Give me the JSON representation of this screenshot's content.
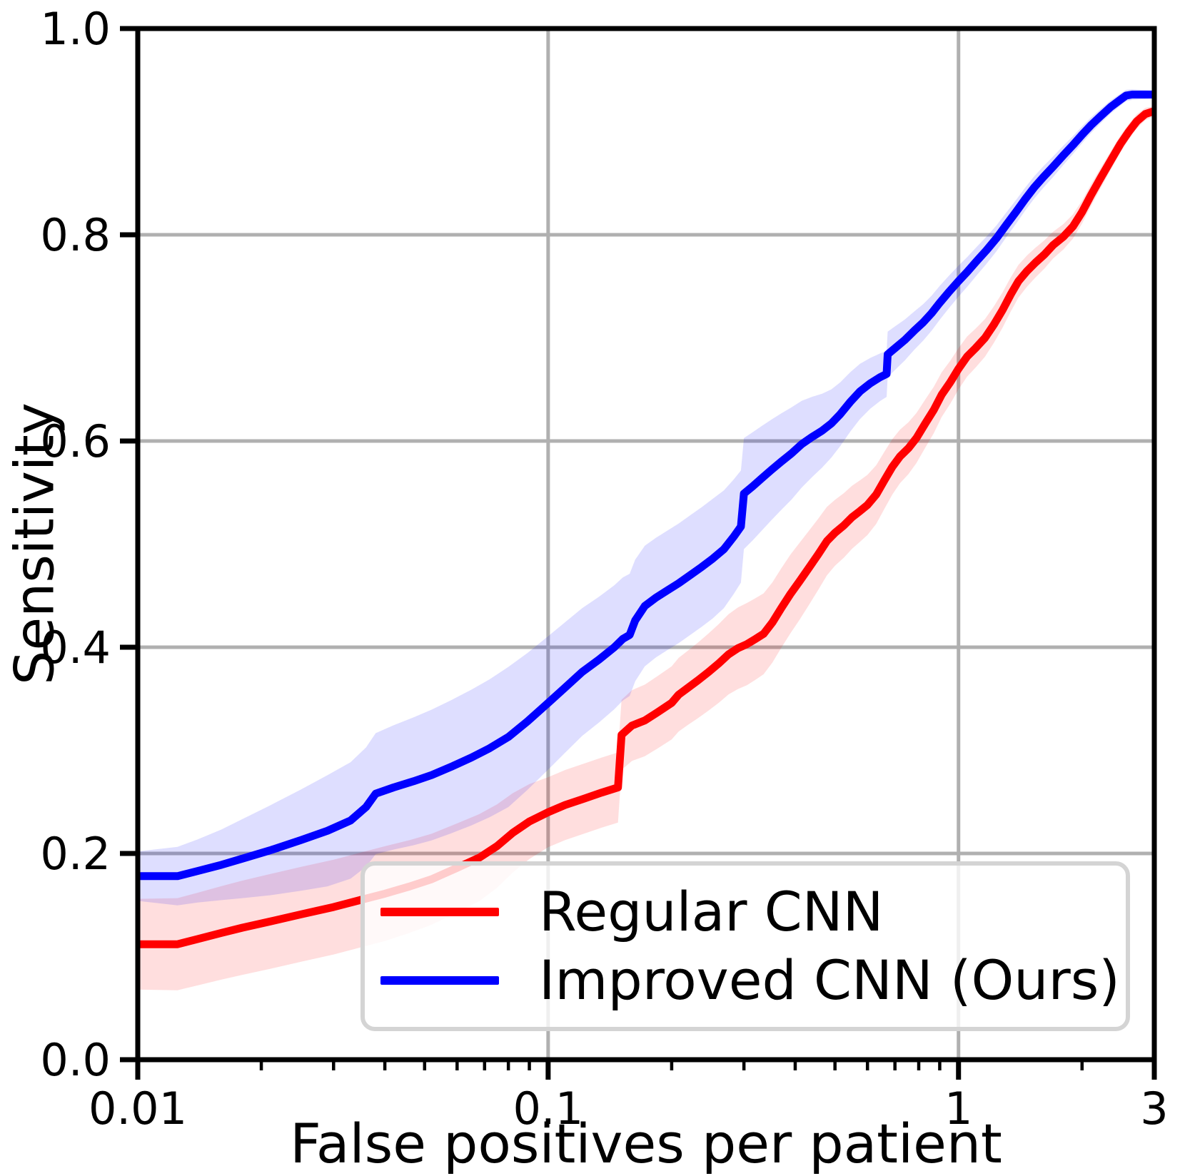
{
  "figure": {
    "xlabel": "False positives per patient",
    "ylabel": "Sensitivity",
    "legend": [
      {
        "label": "Regular CNN",
        "color": "#ff0000"
      },
      {
        "label": "Improved CNN (Ours)",
        "color": "#0000ff"
      }
    ]
  },
  "chart_data": {
    "type": "line",
    "title": "",
    "xlabel": "False positives per patient",
    "ylabel": "Sensitivity",
    "x_scale": "log",
    "xlim": [
      0.01,
      3
    ],
    "ylim": [
      0.0,
      1.0
    ],
    "grid": true,
    "grid_color": "#b0b0b0",
    "spine_color": "#000000",
    "legend_position": "lower-center-inside",
    "x_major_ticks": [
      {
        "value": 0.01,
        "label": "0.01"
      },
      {
        "value": 0.1,
        "label": "0.1"
      },
      {
        "value": 1,
        "label": "1"
      },
      {
        "value": 3,
        "label": "3"
      }
    ],
    "x_minor_ticks": [
      0.02,
      0.03,
      0.04,
      0.05,
      0.06,
      0.07,
      0.08,
      0.09,
      0.2,
      0.3,
      0.4,
      0.5,
      0.6,
      0.7,
      0.8,
      0.9,
      2
    ],
    "x_gridlines": [
      0.1,
      1
    ],
    "y_ticks": [
      {
        "value": 0.0,
        "label": "0.0"
      },
      {
        "value": 0.2,
        "label": "0.2"
      },
      {
        "value": 0.4,
        "label": "0.4"
      },
      {
        "value": 0.6,
        "label": "0.6"
      },
      {
        "value": 0.8,
        "label": "0.8"
      },
      {
        "value": 1.0,
        "label": "1.0"
      }
    ],
    "y_gridlines": [
      0.2,
      0.4,
      0.6,
      0.8
    ],
    "series": [
      {
        "name": "Regular CNN",
        "color": "#ff0000",
        "band_color": "rgba(255,0,0,0.13)",
        "points": [
          [
            0.01,
            0.112
          ],
          [
            0.0125,
            0.112
          ],
          [
            0.014,
            0.117
          ],
          [
            0.016,
            0.123
          ],
          [
            0.018,
            0.128
          ],
          [
            0.021,
            0.134
          ],
          [
            0.025,
            0.141
          ],
          [
            0.03,
            0.148
          ],
          [
            0.035,
            0.155
          ],
          [
            0.04,
            0.161
          ],
          [
            0.046,
            0.168
          ],
          [
            0.052,
            0.175
          ],
          [
            0.06,
            0.186
          ],
          [
            0.068,
            0.196
          ],
          [
            0.075,
            0.207
          ],
          [
            0.082,
            0.22
          ],
          [
            0.09,
            0.231
          ],
          [
            0.1,
            0.24
          ],
          [
            0.11,
            0.247
          ],
          [
            0.122,
            0.253
          ],
          [
            0.135,
            0.259
          ],
          [
            0.148,
            0.264
          ],
          [
            0.151,
            0.315
          ],
          [
            0.16,
            0.324
          ],
          [
            0.172,
            0.329
          ],
          [
            0.185,
            0.337
          ],
          [
            0.2,
            0.346
          ],
          [
            0.208,
            0.354
          ],
          [
            0.218,
            0.36
          ],
          [
            0.232,
            0.368
          ],
          [
            0.246,
            0.376
          ],
          [
            0.26,
            0.384
          ],
          [
            0.275,
            0.393
          ],
          [
            0.29,
            0.399
          ],
          [
            0.305,
            0.403
          ],
          [
            0.32,
            0.408
          ],
          [
            0.335,
            0.413
          ],
          [
            0.352,
            0.424
          ],
          [
            0.37,
            0.438
          ],
          [
            0.39,
            0.452
          ],
          [
            0.41,
            0.464
          ],
          [
            0.432,
            0.477
          ],
          [
            0.455,
            0.49
          ],
          [
            0.478,
            0.503
          ],
          [
            0.5,
            0.511
          ],
          [
            0.525,
            0.518
          ],
          [
            0.55,
            0.526
          ],
          [
            0.575,
            0.532
          ],
          [
            0.6,
            0.538
          ],
          [
            0.63,
            0.548
          ],
          [
            0.66,
            0.562
          ],
          [
            0.69,
            0.575
          ],
          [
            0.72,
            0.585
          ],
          [
            0.755,
            0.593
          ],
          [
            0.79,
            0.603
          ],
          [
            0.83,
            0.617
          ],
          [
            0.87,
            0.63
          ],
          [
            0.91,
            0.645
          ],
          [
            0.955,
            0.657
          ],
          [
            1.0,
            0.67
          ],
          [
            1.05,
            0.682
          ],
          [
            1.1,
            0.69
          ],
          [
            1.16,
            0.7
          ],
          [
            1.22,
            0.713
          ],
          [
            1.28,
            0.727
          ],
          [
            1.34,
            0.742
          ],
          [
            1.4,
            0.755
          ],
          [
            1.47,
            0.765
          ],
          [
            1.54,
            0.773
          ],
          [
            1.62,
            0.781
          ],
          [
            1.7,
            0.79
          ],
          [
            1.8,
            0.798
          ],
          [
            1.9,
            0.808
          ],
          [
            2.0,
            0.822
          ],
          [
            2.1,
            0.838
          ],
          [
            2.22,
            0.855
          ],
          [
            2.35,
            0.872
          ],
          [
            2.48,
            0.888
          ],
          [
            2.6,
            0.9
          ],
          [
            2.72,
            0.91
          ],
          [
            2.85,
            0.917
          ],
          [
            3.0,
            0.92
          ]
        ],
        "band_halfwidth": [
          [
            0.01,
            0.044
          ],
          [
            0.02,
            0.046
          ],
          [
            0.04,
            0.046
          ],
          [
            0.07,
            0.042
          ],
          [
            0.1,
            0.034
          ],
          [
            0.15,
            0.034
          ],
          [
            0.22,
            0.036
          ],
          [
            0.3,
            0.04
          ],
          [
            0.4,
            0.038
          ],
          [
            0.5,
            0.032
          ],
          [
            0.65,
            0.028
          ],
          [
            0.8,
            0.024
          ],
          [
            1.0,
            0.02
          ],
          [
            1.3,
            0.017
          ],
          [
            1.7,
            0.013
          ],
          [
            2.2,
            0.01
          ],
          [
            2.7,
            0.007
          ],
          [
            3.0,
            0.005
          ]
        ]
      },
      {
        "name": "Improved CNN (Ours)",
        "color": "#0000ff",
        "band_color": "rgba(0,0,255,0.13)",
        "points": [
          [
            0.01,
            0.178
          ],
          [
            0.0125,
            0.178
          ],
          [
            0.014,
            0.183
          ],
          [
            0.016,
            0.189
          ],
          [
            0.018,
            0.195
          ],
          [
            0.021,
            0.203
          ],
          [
            0.025,
            0.213
          ],
          [
            0.029,
            0.222
          ],
          [
            0.033,
            0.232
          ],
          [
            0.036,
            0.245
          ],
          [
            0.038,
            0.258
          ],
          [
            0.042,
            0.264
          ],
          [
            0.047,
            0.27
          ],
          [
            0.052,
            0.276
          ],
          [
            0.058,
            0.284
          ],
          [
            0.065,
            0.293
          ],
          [
            0.072,
            0.302
          ],
          [
            0.08,
            0.313
          ],
          [
            0.089,
            0.328
          ],
          [
            0.1,
            0.346
          ],
          [
            0.11,
            0.361
          ],
          [
            0.121,
            0.376
          ],
          [
            0.133,
            0.388
          ],
          [
            0.145,
            0.4
          ],
          [
            0.152,
            0.408
          ],
          [
            0.158,
            0.412
          ],
          [
            0.163,
            0.426
          ],
          [
            0.172,
            0.44
          ],
          [
            0.183,
            0.448
          ],
          [
            0.195,
            0.455
          ],
          [
            0.208,
            0.462
          ],
          [
            0.222,
            0.47
          ],
          [
            0.237,
            0.478
          ],
          [
            0.252,
            0.486
          ],
          [
            0.268,
            0.495
          ],
          [
            0.283,
            0.507
          ],
          [
            0.295,
            0.517
          ],
          [
            0.3,
            0.549
          ],
          [
            0.315,
            0.556
          ],
          [
            0.332,
            0.564
          ],
          [
            0.35,
            0.572
          ],
          [
            0.37,
            0.58
          ],
          [
            0.392,
            0.588
          ],
          [
            0.415,
            0.597
          ],
          [
            0.44,
            0.604
          ],
          [
            0.465,
            0.61
          ],
          [
            0.49,
            0.617
          ],
          [
            0.515,
            0.626
          ],
          [
            0.545,
            0.638
          ],
          [
            0.575,
            0.648
          ],
          [
            0.61,
            0.656
          ],
          [
            0.645,
            0.662
          ],
          [
            0.668,
            0.665
          ],
          [
            0.672,
            0.684
          ],
          [
            0.7,
            0.69
          ],
          [
            0.74,
            0.698
          ],
          [
            0.78,
            0.707
          ],
          [
            0.82,
            0.715
          ],
          [
            0.86,
            0.724
          ],
          [
            0.9,
            0.734
          ],
          [
            0.945,
            0.744
          ],
          [
            1.0,
            0.755
          ],
          [
            1.05,
            0.764
          ],
          [
            1.11,
            0.775
          ],
          [
            1.17,
            0.785
          ],
          [
            1.24,
            0.797
          ],
          [
            1.31,
            0.81
          ],
          [
            1.38,
            0.822
          ],
          [
            1.45,
            0.834
          ],
          [
            1.53,
            0.846
          ],
          [
            1.61,
            0.856
          ],
          [
            1.7,
            0.866
          ],
          [
            1.8,
            0.877
          ],
          [
            1.9,
            0.887
          ],
          [
            2.0,
            0.897
          ],
          [
            2.1,
            0.906
          ],
          [
            2.22,
            0.915
          ],
          [
            2.35,
            0.924
          ],
          [
            2.48,
            0.931
          ],
          [
            2.56,
            0.935
          ],
          [
            2.65,
            0.936
          ],
          [
            3.0,
            0.936
          ]
        ],
        "band_halfwidth": [
          [
            0.01,
            0.024
          ],
          [
            0.015,
            0.032
          ],
          [
            0.02,
            0.042
          ],
          [
            0.03,
            0.055
          ],
          [
            0.05,
            0.063
          ],
          [
            0.08,
            0.068
          ],
          [
            0.12,
            0.062
          ],
          [
            0.18,
            0.058
          ],
          [
            0.26,
            0.058
          ],
          [
            0.32,
            0.052
          ],
          [
            0.4,
            0.044
          ],
          [
            0.5,
            0.032
          ],
          [
            0.62,
            0.024
          ],
          [
            0.8,
            0.018
          ],
          [
            1.0,
            0.015
          ],
          [
            1.3,
            0.012
          ],
          [
            1.7,
            0.01
          ],
          [
            2.2,
            0.007
          ],
          [
            2.7,
            0.005
          ],
          [
            3.0,
            0.004
          ]
        ]
      }
    ]
  }
}
